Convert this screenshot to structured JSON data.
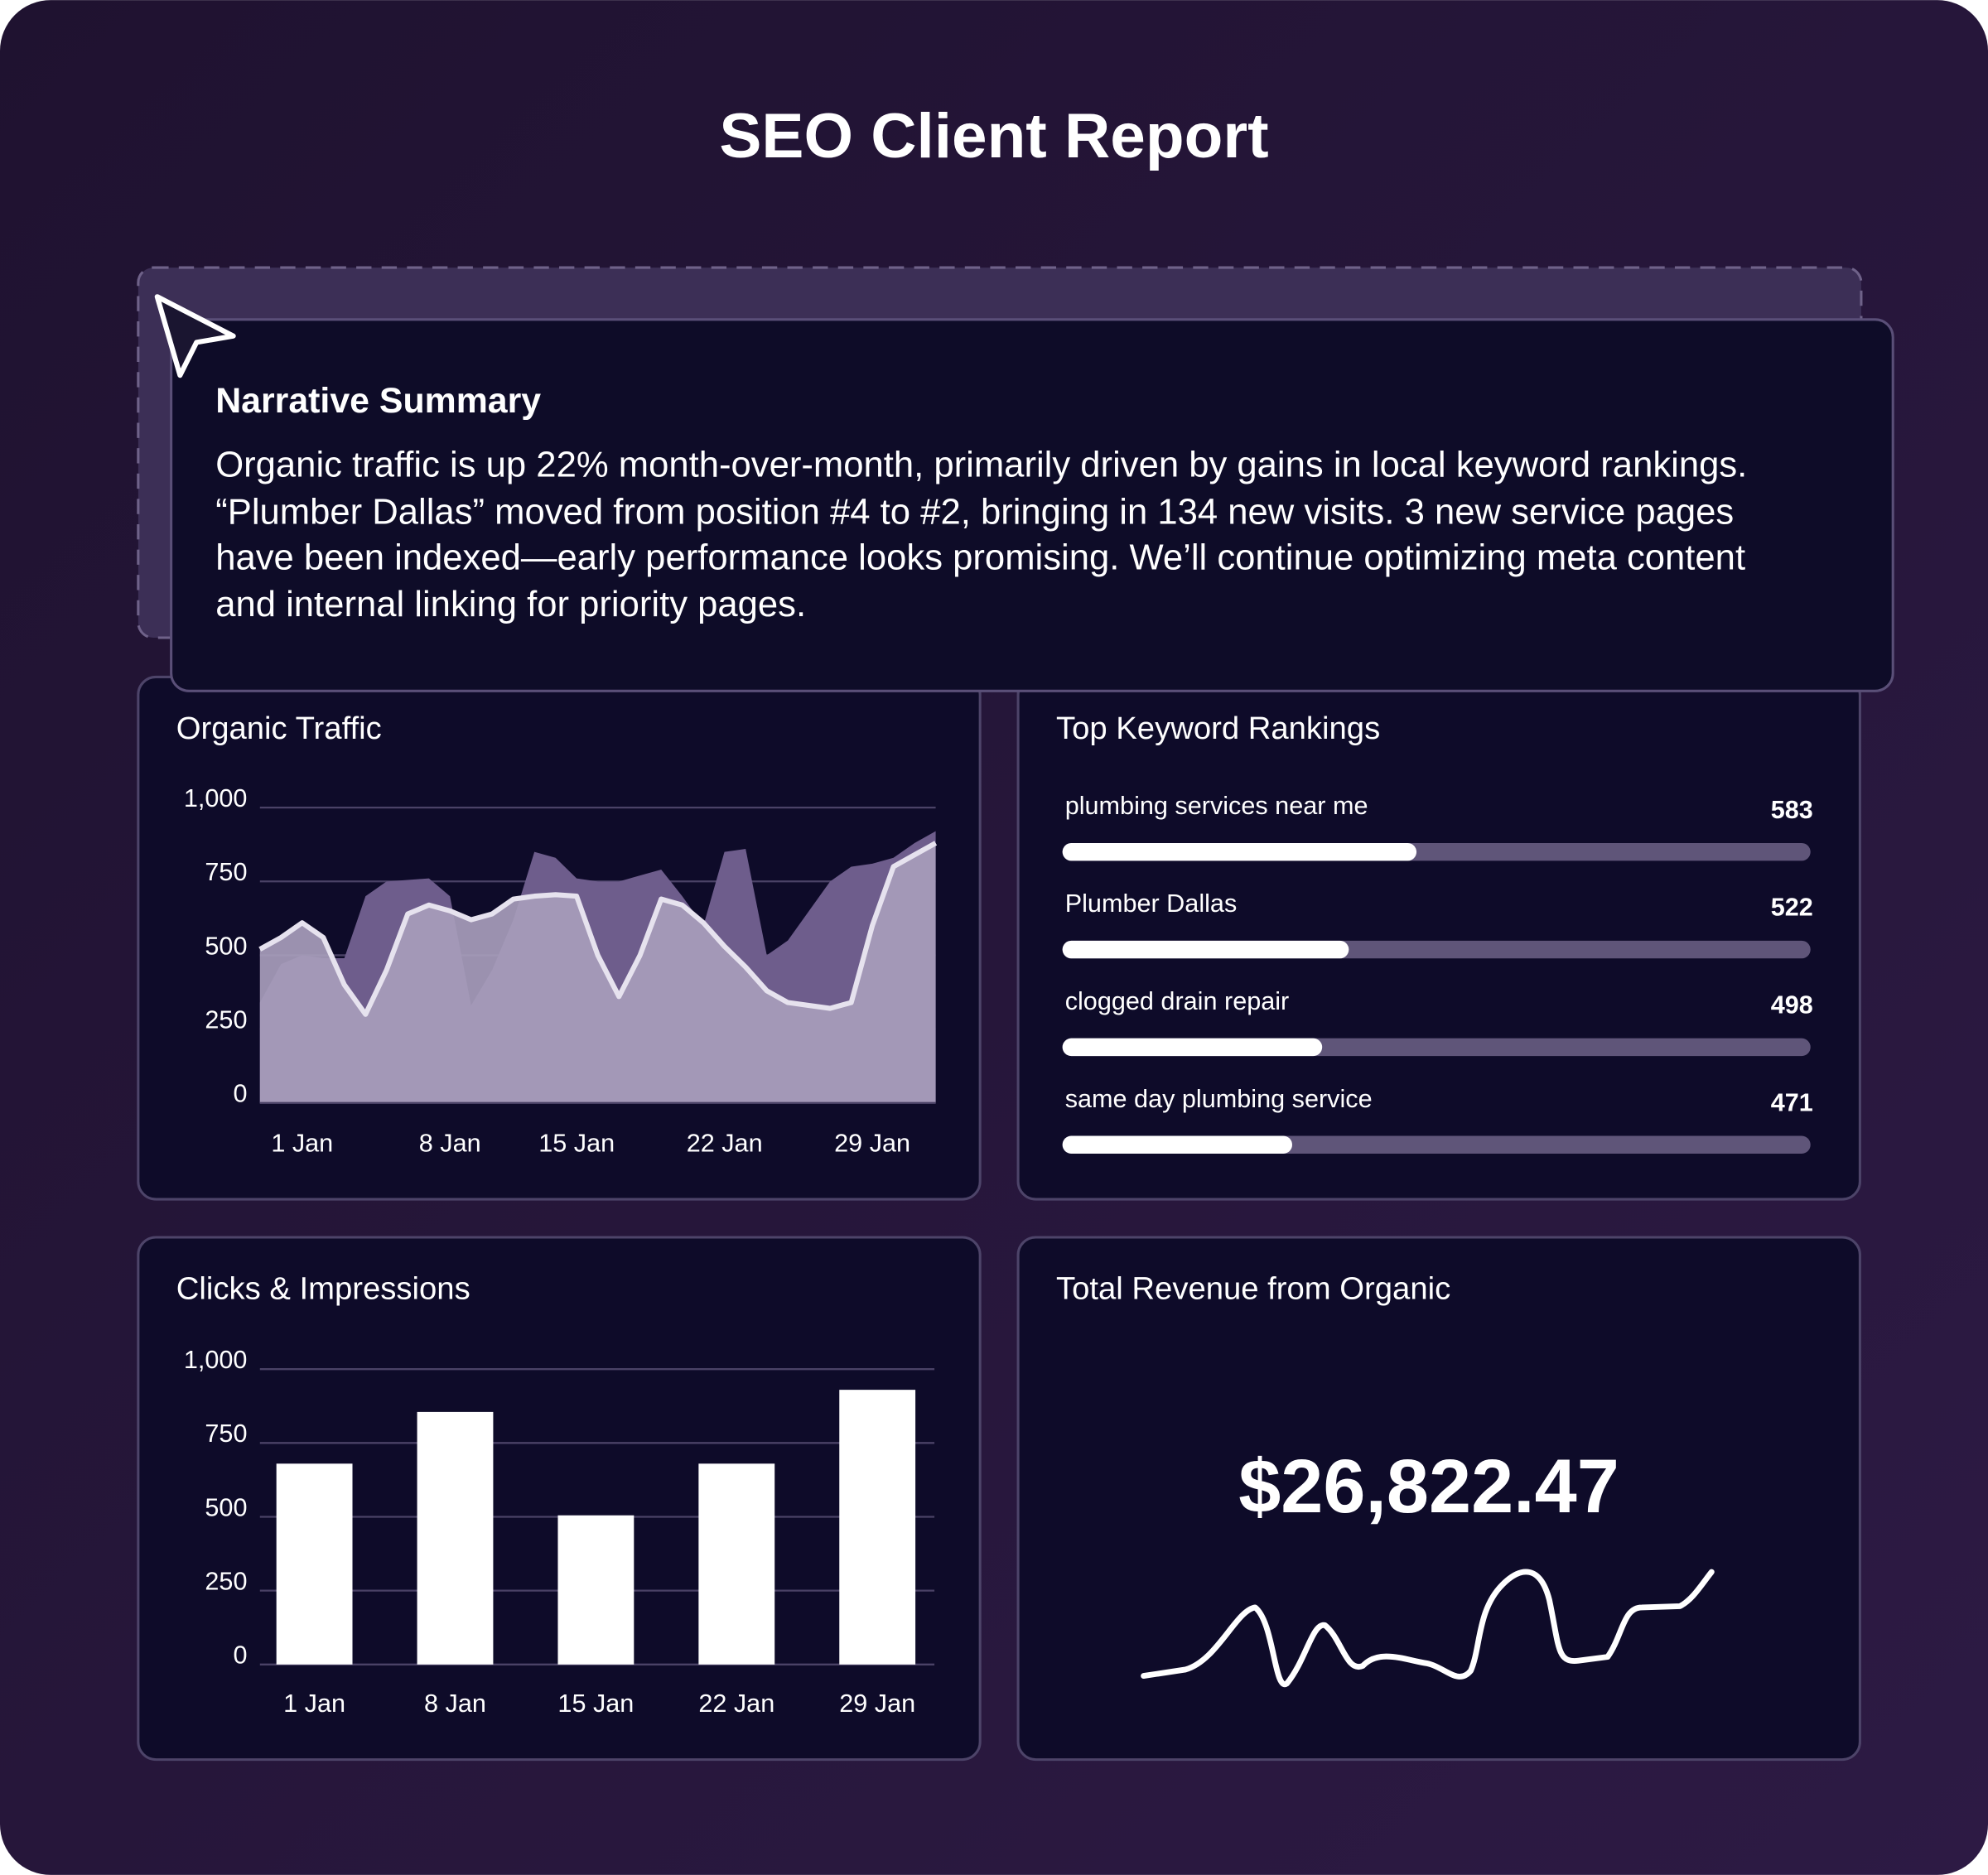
{
  "title": "SEO Client Report",
  "narrative": {
    "heading": "Narrative Summary",
    "text": "Organic traffic is up 22% month-over-month, primarily driven by gains in local keyword rankings. “Plumber Dallas” moved from position #4 to #2, bringing in 134 new visits. 3 new service pages have been indexed—early performance looks promising. We’ll continue optimizing meta content and internal linking for priority pages."
  },
  "chart_data": [
    {
      "type": "area",
      "title": "Organic Traffic",
      "categories": [
        null,
        null,
        "1 Jan",
        null,
        null,
        null,
        null,
        null,
        null,
        "8 Jan",
        null,
        null,
        null,
        null,
        null,
        "15 Jan",
        null,
        null,
        null,
        null,
        null,
        null,
        "22 Jan",
        null,
        null,
        null,
        null,
        null,
        null,
        "29 Jan",
        null,
        null,
        null
      ],
      "series": [
        {
          "color": "#6e5d8c",
          "values": [
            340,
            470,
            500,
            490,
            490,
            700,
            750,
            755,
            760,
            700,
            330,
            450,
            620,
            850,
            830,
            760,
            750,
            750,
            770,
            790,
            700,
            600,
            850,
            860,
            500,
            550,
            650,
            750,
            800,
            810,
            830,
            880,
            920
          ]
        },
        {
          "color": "#a79dbb",
          "line_color": "#e6e2ee",
          "values": [
            520,
            560,
            610,
            560,
            400,
            300,
            450,
            640,
            670,
            650,
            620,
            640,
            690,
            700,
            705,
            700,
            500,
            360,
            500,
            690,
            670,
            610,
            530,
            460,
            380,
            340,
            330,
            320,
            340,
            600,
            800,
            840,
            880
          ]
        }
      ],
      "ylim": [
        0,
        1000
      ],
      "yticks": [
        0,
        250,
        500,
        750,
        {
          "value": 1000,
          "label": "1,000"
        }
      ],
      "grid": true
    },
    {
      "type": "hbar",
      "title": "Top Keyword Rankings",
      "categories": [
        "plumbing services near me",
        "Plumber Dallas",
        "clogged drain repair",
        "same day plumbing service"
      ],
      "values": [
        583,
        522,
        498,
        471
      ],
      "xlim": [
        264,
        938
      ],
      "color": "#ffffff",
      "track_color": "#5f5579"
    },
    {
      "type": "bar",
      "title": "Clicks & Impressions",
      "categories": [
        "1 Jan",
        "8 Jan",
        "15 Jan",
        "22 Jan",
        "29 Jan"
      ],
      "values": [
        680,
        855,
        505,
        680,
        930
      ],
      "color": "#ffffff",
      "ylim": [
        0,
        1000
      ],
      "yticks": [
        0,
        250,
        500,
        750,
        {
          "value": 1000,
          "label": "1,000"
        }
      ],
      "grid": true
    },
    {
      "type": "kpi",
      "title": "Total Revenue from Organic",
      "values": [
        26822.47
      ],
      "value_labels": [
        "$26,822.47"
      ]
    }
  ]
}
